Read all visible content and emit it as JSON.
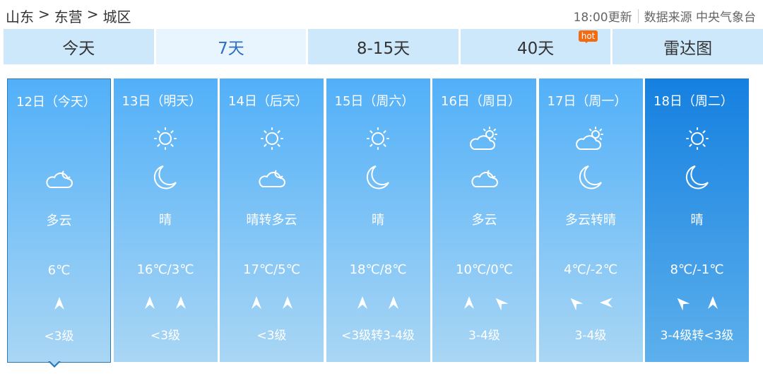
{
  "breadcrumb": [
    "山东",
    ">",
    "东营",
    ">",
    "城区"
  ],
  "update_time": "18:00更新",
  "source": "数据来源 中央气象台",
  "tabs": [
    {
      "label": "今天"
    },
    {
      "label": "7天",
      "active": true
    },
    {
      "label": "8-15天"
    },
    {
      "label": "40天",
      "badge": "hot"
    },
    {
      "label": "雷达图"
    }
  ],
  "colors": {
    "card_top": "#52b0f8",
    "card_bottom": "#a9d6f4",
    "highlight_top": "#1580e0",
    "hot": "#f26a12",
    "active_tab_text": "#2f6fc0"
  },
  "days": [
    {
      "date": "12日（今天）",
      "day_icon": "",
      "night_icon": "cloud-moon-icon",
      "desc": "多云",
      "temp": "6℃",
      "wind_dirs": [
        180
      ],
      "wind": "<3级",
      "today": true
    },
    {
      "date": "13日（明天）",
      "day_icon": "sun-icon",
      "night_icon": "moon-icon",
      "desc": "晴",
      "temp": "16℃/3℃",
      "wind_dirs": [
        180,
        180
      ],
      "wind": "<3级"
    },
    {
      "date": "14日（后天）",
      "day_icon": "sun-icon",
      "night_icon": "cloud-moon-icon",
      "desc": "晴转多云",
      "temp": "17℃/5℃",
      "wind_dirs": [
        180,
        180
      ],
      "wind": "<3级"
    },
    {
      "date": "15日（周六）",
      "day_icon": "sun-icon",
      "night_icon": "moon-icon",
      "desc": "晴",
      "temp": "18℃/8℃",
      "wind_dirs": [
        180,
        180
      ],
      "wind": "<3级转3-4级"
    },
    {
      "date": "16日（周日）",
      "day_icon": "cloud-sun-icon",
      "night_icon": "cloud-moon-icon",
      "desc": "多云",
      "temp": "10℃/0℃",
      "wind_dirs": [
        180,
        135
      ],
      "wind": "3-4级"
    },
    {
      "date": "17日（周一）",
      "day_icon": "cloud-sun-icon",
      "night_icon": "moon-icon",
      "desc": "多云转晴",
      "temp": "4℃/-2℃",
      "wind_dirs": [
        135,
        90
      ],
      "wind": "3-4级"
    },
    {
      "date": "18日（周二）",
      "day_icon": "sun-icon",
      "night_icon": "moon-icon",
      "desc": "晴",
      "temp": "8℃/-1℃",
      "wind_dirs": [
        135,
        180
      ],
      "wind": "3-4级转<3级",
      "highlight": true
    }
  ]
}
